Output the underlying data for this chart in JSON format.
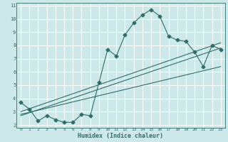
{
  "title": "",
  "xlabel": "Humidex (Indice chaleur)",
  "ylabel": "",
  "background_color": "#cce8e8",
  "grid_color": "#ffffff",
  "line_color": "#2e6e6a",
  "xlim": [
    -0.5,
    23.5
  ],
  "ylim": [
    1.8,
    11.2
  ],
  "xticks": [
    0,
    1,
    2,
    3,
    4,
    5,
    6,
    7,
    8,
    9,
    10,
    11,
    12,
    13,
    14,
    15,
    16,
    17,
    18,
    19,
    20,
    21,
    22,
    23
  ],
  "yticks": [
    2,
    3,
    4,
    5,
    6,
    7,
    8,
    9,
    10,
    11
  ],
  "series": [
    {
      "x": [
        0,
        1,
        2,
        3,
        4,
        5,
        6,
        7,
        8,
        9,
        10,
        11,
        12,
        13,
        14,
        15,
        16,
        17,
        18,
        19,
        20,
        21,
        22,
        23
      ],
      "y": [
        3.7,
        3.2,
        2.3,
        2.7,
        2.4,
        2.2,
        2.2,
        2.8,
        2.7,
        5.2,
        7.7,
        7.2,
        8.8,
        9.7,
        10.3,
        10.7,
        10.2,
        8.7,
        8.4,
        8.3,
        7.5,
        6.4,
        8.0,
        7.7
      ],
      "marker": "D",
      "markersize": 2.5
    },
    {
      "x": [
        0,
        23
      ],
      "y": [
        3.0,
        8.2
      ],
      "marker": null
    },
    {
      "x": [
        0,
        23
      ],
      "y": [
        2.8,
        6.4
      ],
      "marker": null
    },
    {
      "x": [
        0,
        23
      ],
      "y": [
        2.7,
        7.8
      ],
      "marker": null
    }
  ]
}
